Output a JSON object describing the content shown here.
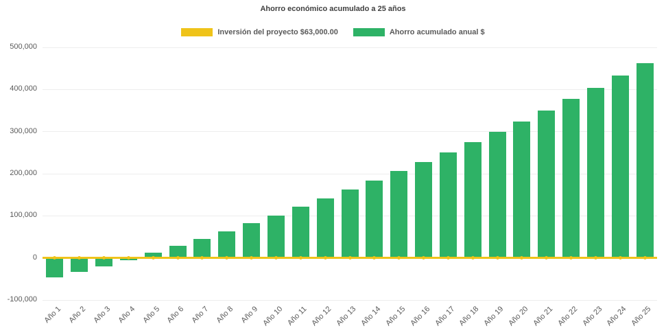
{
  "chart_data": {
    "type": "bar",
    "title": "Ahorro económico acumulado a 25 años",
    "categories": [
      "Año 1",
      "Año 2",
      "Año 3",
      "Año 4",
      "Año 5",
      "Año 6",
      "Año 7",
      "Año 8",
      "Año 9",
      "Año 10",
      "Año 11",
      "Año 12",
      "Año 13",
      "Año 14",
      "Año 15",
      "Año 16",
      "Año 17",
      "Año 18",
      "Año 19",
      "Año 20",
      "Año 21",
      "Año 22",
      "Año 23",
      "Año 24",
      "Año 25"
    ],
    "series": [
      {
        "name": "Inversión del proyecto $63,000.00",
        "type": "line",
        "color": "#efc319",
        "values": [
          0,
          0,
          0,
          0,
          0,
          0,
          0,
          0,
          0,
          0,
          0,
          0,
          0,
          0,
          0,
          0,
          0,
          0,
          0,
          0,
          0,
          0,
          0,
          0,
          0
        ]
      },
      {
        "name": "Ahorro acumulado anual $",
        "type": "bar",
        "color": "#2eb266",
        "values": [
          -47000,
          -33000,
          -20000,
          -5000,
          12000,
          28000,
          45000,
          63000,
          82000,
          101000,
          121000,
          142000,
          163000,
          184000,
          206000,
          228000,
          251000,
          275000,
          300000,
          324000,
          350000,
          377000,
          404000,
          433000,
          463000
        ]
      }
    ],
    "ylim": [
      -100000,
      500000
    ],
    "yticks": [
      -100000,
      0,
      100000,
      200000,
      300000,
      400000,
      500000
    ],
    "ytick_labels": [
      "-100,000",
      "0",
      "100,000",
      "200,000",
      "300,000",
      "400,000",
      "500,000"
    ],
    "grid": true,
    "legend_position": "top"
  }
}
